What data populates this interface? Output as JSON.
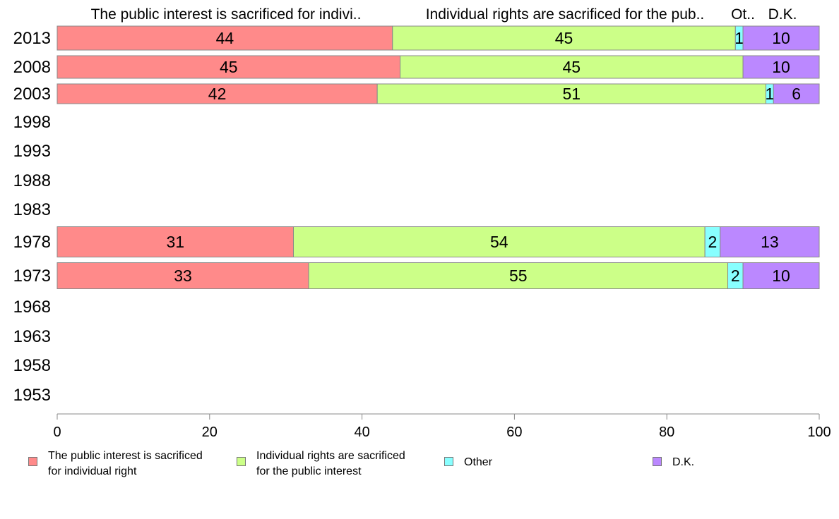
{
  "chart_data": {
    "type": "bar",
    "orientation": "horizontal",
    "stacked": true,
    "column_headers": [
      "The public interest is sacrificed for indivi..",
      "Individual rights are sacrificed for the pub..",
      "Ot..",
      "D.K."
    ],
    "categories": [
      "2013",
      "2008",
      "2003",
      "1998",
      "1993",
      "1988",
      "1983",
      "1978",
      "1973",
      "1968",
      "1963",
      "1958",
      "1953"
    ],
    "series": [
      {
        "name": "The public interest is sacrificed\nfor individual right",
        "color": "#ff8a8a",
        "values": [
          44,
          45,
          42,
          null,
          null,
          null,
          null,
          31,
          33,
          null,
          null,
          null,
          null
        ]
      },
      {
        "name": "Individual rights are sacrificed\nfor the public interest",
        "color": "#ccff88",
        "values": [
          45,
          45,
          51,
          null,
          null,
          null,
          null,
          54,
          55,
          null,
          null,
          null,
          null
        ]
      },
      {
        "name": "Other",
        "color": "#88ffff",
        "values": [
          1,
          0,
          1,
          null,
          null,
          null,
          null,
          2,
          2,
          null,
          null,
          null,
          null
        ]
      },
      {
        "name": "D.K.",
        "color": "#bb88ff",
        "values": [
          10,
          10,
          6,
          null,
          null,
          null,
          null,
          13,
          10,
          null,
          null,
          null,
          null
        ]
      }
    ],
    "xlim": [
      0,
      100
    ],
    "xticks": [
      "0",
      "20",
      "40",
      "60",
      "80",
      "100"
    ],
    "xlabel": "",
    "ylabel": "",
    "legend_position": "bottom",
    "grid": false
  }
}
